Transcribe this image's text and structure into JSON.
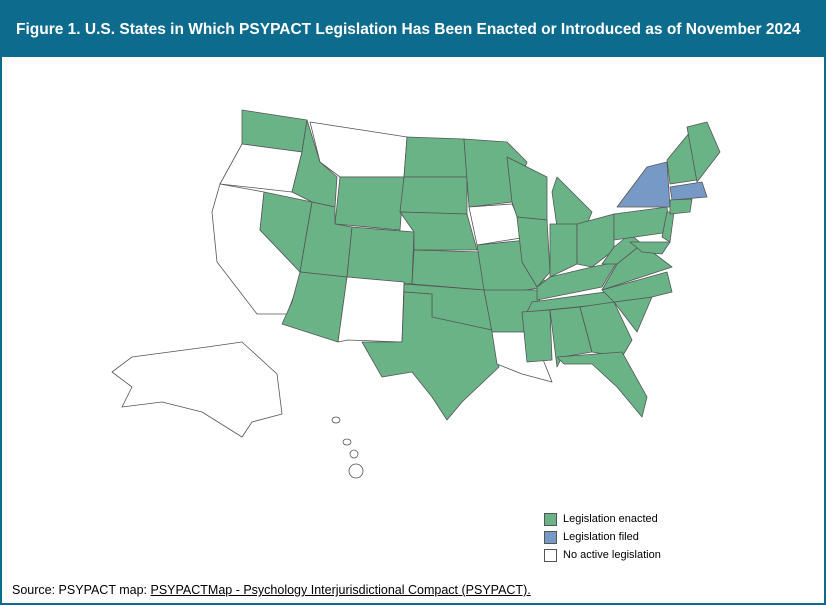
{
  "header": {
    "title": "Figure 1. U.S. States in Which PSYPACT Legislation Has Been Enacted or Introduced as of November 2024"
  },
  "legend": [
    {
      "label": "Legislation enacted",
      "color": "#6ab387"
    },
    {
      "label": "Legislation filed",
      "color": "#7799c6"
    },
    {
      "label": "No active legislation",
      "color": "#ffffff"
    }
  ],
  "source": {
    "prefix": "Source: PSYPACT map: ",
    "link": "PSYPACTMap - Psychology Interjurisdictional Compact (PSYPACT)."
  }
}
